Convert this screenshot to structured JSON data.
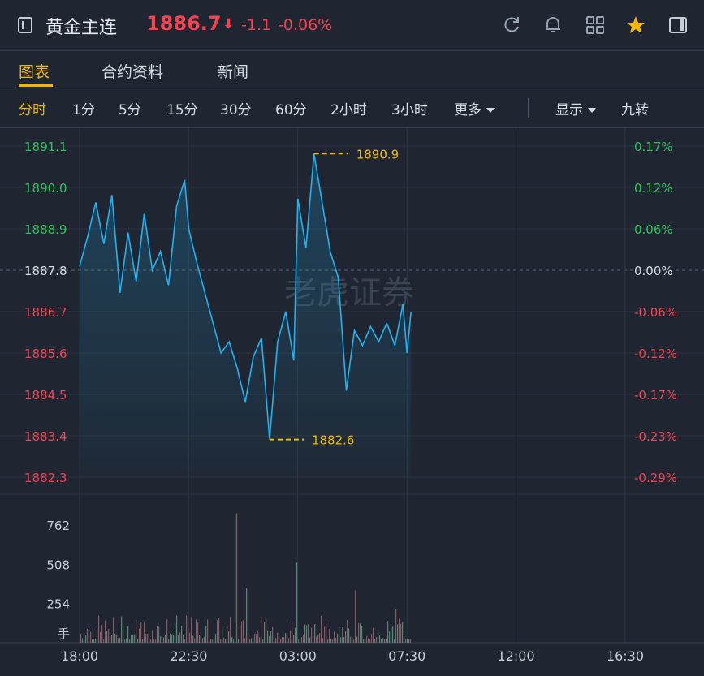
{
  "header": {
    "title": "黄金主连",
    "price": "1886.7",
    "arrow": "⬇",
    "change": "-1.1",
    "change_pct": "-0.06%"
  },
  "header_icons": [
    "refresh-icon",
    "bell-icon",
    "grid-icon",
    "star-icon",
    "sidebar-icon"
  ],
  "tabs": [
    {
      "label": "图表",
      "active": true
    },
    {
      "label": "合约资料",
      "active": false
    },
    {
      "label": "新闻",
      "active": false
    }
  ],
  "periods": [
    {
      "label": "分时",
      "active": true
    },
    {
      "label": "1分"
    },
    {
      "label": "5分"
    },
    {
      "label": "15分"
    },
    {
      "label": "30分"
    },
    {
      "label": "60分"
    },
    {
      "label": "2小时"
    },
    {
      "label": "3小时"
    },
    {
      "label": "更多"
    }
  ],
  "display_menu": "显示",
  "nine_turn": "九转",
  "watermark": "老虎证券",
  "colors": {
    "up": "#2fc25b",
    "down": "#f2434f",
    "line": "#1fb3f2",
    "accent": "#f5b800",
    "bg": "#1f2632"
  },
  "chart_data": {
    "type": "line",
    "price_axis_left": [
      "1891.1",
      "1890.0",
      "1888.9",
      "1887.8",
      "1886.7",
      "1885.6",
      "1884.5",
      "1883.4",
      "1882.3"
    ],
    "pct_axis_right": [
      "0.17%",
      "0.12%",
      "0.06%",
      "0.00%",
      "-0.06%",
      "-0.12%",
      "-0.17%",
      "-0.23%",
      "-0.29%"
    ],
    "reference_price": 1887.8,
    "ylim": [
      1882.3,
      1891.1
    ],
    "x_ticks": [
      "18:00",
      "22:30",
      "03:00",
      "07:30",
      "12:00",
      "16:30"
    ],
    "high_label": "1890.9",
    "low_label": "1882.6",
    "series": [
      {
        "x": [
          "18:00",
          "18:20",
          "18:40",
          "19:00",
          "19:20",
          "19:40",
          "20:00",
          "20:20",
          "20:40",
          "21:00",
          "21:20",
          "21:40",
          "22:00",
          "22:20",
          "22:30",
          "22:50",
          "23:10",
          "23:30",
          "23:50",
          "00:10",
          "00:30",
          "00:50",
          "01:10",
          "01:30",
          "01:50",
          "02:10",
          "02:30",
          "02:50",
          "03:00",
          "03:20",
          "03:40",
          "04:00",
          "04:20",
          "04:40",
          "05:00",
          "05:20",
          "05:40",
          "06:00",
          "06:20",
          "06:40",
          "07:00",
          "07:20",
          "07:30",
          "07:40"
        ],
        "values": [
          1887.9,
          1888.7,
          1889.6,
          1888.5,
          1889.8,
          1887.2,
          1888.8,
          1887.5,
          1889.3,
          1887.8,
          1888.3,
          1887.4,
          1889.5,
          1890.2,
          1888.9,
          1888.0,
          1887.2,
          1886.4,
          1885.6,
          1885.9,
          1885.2,
          1884.3,
          1885.5,
          1886.0,
          1883.3,
          1885.9,
          1886.7,
          1885.4,
          1889.7,
          1888.4,
          1890.9,
          1889.6,
          1888.3,
          1887.6,
          1884.6,
          1886.2,
          1885.8,
          1886.3,
          1885.9,
          1886.4,
          1885.8,
          1886.9,
          1885.6,
          1886.7
        ]
      }
    ],
    "volume_axis": [
      "762",
      "508",
      "254",
      "手"
    ],
    "volume_ylim": [
      0,
      900
    ]
  }
}
